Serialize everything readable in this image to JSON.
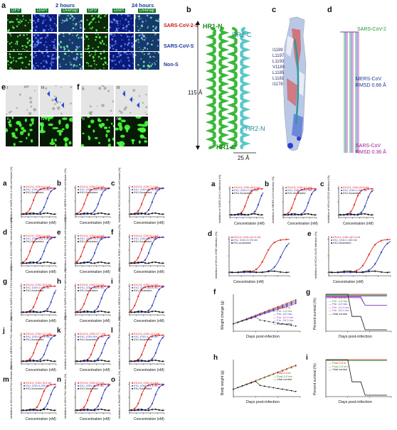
{
  "fig_a_top": {
    "label": "a",
    "time1": "2 hours",
    "time2": "24 hours",
    "channels": [
      "GFP",
      "DAPI",
      "Overlap"
    ],
    "rows": [
      "SARS-CoV-2-S",
      "SARS-CoV-S",
      "Non-S"
    ]
  },
  "fig_e": {
    "label": "e",
    "sub": [
      "I",
      "II",
      "III",
      "IV"
    ]
  },
  "fig_f": {
    "label": "f",
    "sub": [
      "I",
      "II",
      "III",
      "IV"
    ]
  },
  "fig_b": {
    "label": "b",
    "hr1n": "HR1-N",
    "hr1c": "HR1-C",
    "hr2c": "HR2-C",
    "hr2n": "HR2-N",
    "height": "115 Å",
    "width": "25 Å"
  },
  "fig_c": {
    "label": "c",
    "residues": [
      "I1199",
      "L1197",
      "L1193",
      "V1189",
      "L1185",
      "L1181",
      "I1178"
    ]
  },
  "fig_d": {
    "label": "d",
    "s1": "SARS-CoV-2",
    "s2": "MERS-CoV",
    "s2r": "RMSD 0.66 Å",
    "s3": "SARS-CoV",
    "s3r": "RMSD 0.36 Å"
  },
  "xaxis": "Concentration (nM)",
  "left_panels": [
    {
      "label": "a",
      "y": "Inhibition of SARS-CoV-2 cell-cell fusion (%)",
      "l1": "EK1C4, IC50=5.2 nM",
      "l2": "EK1, IC50=409.3 nM",
      "l3": "EK1-Scrambled"
    },
    {
      "label": "b",
      "y": "Inhibition of MERS-CoV cell-cell fusion (%)",
      "l1": "EK1C4, IC50=2.5 nM",
      "l2": "EK1, IC50=236.0 nM",
      "l3": "EK1-Scrambled"
    },
    {
      "label": "c",
      "y": "Inhibition of HCoV-OC43 cell-cell fusion (%)",
      "l1": "EK1C4, IC50=7.7 nM",
      "l2": "EK1, IC50=187.6 nM",
      "l3": "EK1-Scrambled"
    },
    {
      "label": "d",
      "y": "Inhibition of HCoV-229E cell-cell fusion (%)",
      "l1": "EK1C4, IC50=2.2 nM",
      "l2": "EK1, IC50=201.0 nM",
      "l3": "EK1-Scrambled"
    },
    {
      "label": "e",
      "y": "Inhibition of HCoV-NL63 cell-cell fusion (%)",
      "l1": "EK1C4, IC50=1.3 nM",
      "l2": "EK1, IC50=79.1 nM",
      "l3": "EK1-Scrambled"
    },
    {
      "label": "f",
      "y": "Inhibition of PHEV cell-cell fusion (%)",
      "l1": "EK1C4, IC50=5.1 nM",
      "l2": "EK1, IC50=86.7 nM",
      "l3": "EK1-Scrambled"
    },
    {
      "label": "g",
      "y": "Inhibition of SARS-CoV-2 PsV infection (%)",
      "l1": "EK1C4, IC50=15.8 nM",
      "l2": "EK1, IC50=2,468 nM",
      "l3": "EK1-Scrambled"
    },
    {
      "label": "h",
      "y": "Inhibition of SARS-CoV PsV infection (%)",
      "l1": "EK1C4, IC50=3.5 nM",
      "l2": "EK1, IC50=536.6 nM",
      "l3": "EK1-Scrambled"
    },
    {
      "label": "i",
      "y": "Inhibition of MERS-CoV PsV infection (%)",
      "l1": "EK1C4, IC50=1.2 nM",
      "l2": "EK1, IC50=365.5 nM",
      "l3": "EK1-Scrambled"
    },
    {
      "label": "j",
      "y": "Inhibition of MERS-CoV PsV infection (%)",
      "l1": "EK1C4, IC50=11.1 nM",
      "l2": "EK1, IC50=371.5 nM",
      "l3": "EK1-Scrambled"
    },
    {
      "label": "k",
      "y": "Inhibition of HCoV-OC43 PsV infection (%)",
      "l1": "EK1C4, IC50=37.7 nM",
      "l2": "EK1, IC50=904.2 nM",
      "l3": "EK1-Scrambled"
    },
    {
      "label": "l",
      "y": "Inhibition of HCoV-229E PsV infection (%)",
      "l1": "EK1C4, IC50=13.2 nM",
      "l2": "EK1, IC50=1,043 nM",
      "l3": "EK1-Scrambled"
    },
    {
      "label": "m",
      "y": "Inhibition of HCoV-NL63 PsV infection (%)",
      "l1": "EK1C4, IC50=76.6 nM",
      "l2": "EK1, IC50=1,225 nM",
      "l3": "EK1-Scrambled"
    },
    {
      "label": "n",
      "y": "Inhibition of WIV1 PsV infection (%)",
      "l1": "EK1C4, IC50=8.5 nM",
      "l2": "EK1, IC50=604.1 nM",
      "l3": "EK1-Scrambled"
    },
    {
      "label": "o",
      "y": "Inhibition of Rs3367 PsV infection (%)",
      "l1": "EK1C4, IC50=4.3 nM",
      "l2": "EK1, IC50=401.8 nM",
      "l3": "EK1-Scrambled"
    }
  ],
  "right_a": {
    "label": "a",
    "y": "Inhibition of SARS-CoV-2 infection (%)",
    "l1": "EK1C4, IC50=36.5 nM",
    "l2": "EK1, IC50=2,468 nM",
    "l3": "EK1-Scrambled"
  },
  "right_b": {
    "label": "b",
    "y": "Inhibition of MERS-CoV infection (%)",
    "l1": "EK1C4, IC50=4.2 nM",
    "l2": "EK1, IC50=693.1 nM",
    "l3": "EK1-Scrambled"
  },
  "right_c": {
    "label": "c",
    "y": "Inhibition of HCoV-OC43 infection (%)",
    "l1": "EK1C4, IC50=24.8 nM",
    "l2": "EK1, IC50=1,001 nM",
    "l3": "EK1-Scrambled"
  },
  "right_d": {
    "label": "d",
    "y": "Inhibition of HCoV-229E infection (%)",
    "l1": "EK1C4, IC50=101.5 nM",
    "l2": "EK1, IC50=2,078 nM",
    "l3": "EK1-scrambled"
  },
  "right_e": {
    "label": "e",
    "y": "Inhibition of HCoV-NL63 infection (%)",
    "l1": "EK1C4, IC50=187.6 nM",
    "l2": "EK1, IC50=1,383 nM",
    "l3": "EK1-Scrambled"
  },
  "right_f": {
    "label": "f",
    "y": "Weight change (g)",
    "x": "Days post-infection",
    "legend": [
      "Pre -0.5 hr",
      "Pre -2.0 hrs",
      "Pre -4.0 hrs",
      "Pre -12.0 hrs",
      "Pre -24.0 hrs",
      "Viral control"
    ]
  },
  "right_g": {
    "label": "g",
    "y": "Percent survival (%)",
    "x": "Days post-infection",
    "legend": [
      "Pre -0.5 hr",
      "Pre -2.0 hrs",
      "Pre -4.0 hrs",
      "Pre -12.0 hrs",
      "Pre -24.0 hrs",
      "Viral control"
    ]
  },
  "right_h": {
    "label": "h",
    "y": "Body weight (g)",
    "x": "Days post-infection",
    "legend": [
      "Post-0.5 hr",
      "Post-2.0 hrs",
      "Viral control"
    ]
  },
  "right_i": {
    "label": "i",
    "y": "Percent survival (%)",
    "x": "Days post-infection",
    "legend": [
      "Post-0.5 hr",
      "Post-2.0 hrs",
      "Viral control"
    ]
  },
  "colors": {
    "red": "#e0201c",
    "blue": "#2c3cb8",
    "black": "#111111"
  }
}
